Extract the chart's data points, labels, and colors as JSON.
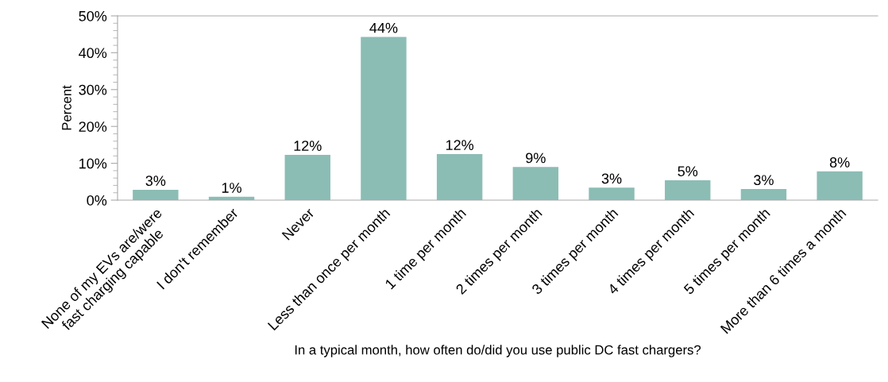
{
  "chart_data": {
    "type": "bar",
    "xlabel": "In a typical month, how often do/did you use public DC fast chargers?",
    "ylabel": "Percent",
    "categories": [
      "None of my EVs are/were\nfast charging capable",
      "I don't remember",
      "Never",
      "Less than once per month",
      "1 time per month",
      "2 times per month",
      "3 times per month",
      "4 times per month",
      "5 times per month",
      "More than 6 times a month"
    ],
    "values": [
      2.8,
      0.9,
      12.3,
      44.3,
      12.5,
      9.0,
      3.4,
      5.4,
      3.0,
      7.8
    ],
    "value_labels": [
      "3%",
      "1%",
      "12%",
      "44%",
      "12%",
      "9%",
      "3%",
      "5%",
      "3%",
      "8%"
    ],
    "color": "#8bbdb5",
    "ylim": [
      0,
      50
    ],
    "yticks": [
      {
        "value": 0,
        "label": "0%"
      },
      {
        "value": 10,
        "label": "10%"
      },
      {
        "value": 20,
        "label": "20%"
      },
      {
        "value": 30,
        "label": "30%"
      },
      {
        "value": 40,
        "label": "40%"
      },
      {
        "value": 50,
        "label": "50%"
      }
    ],
    "grid": false,
    "legend": false
  }
}
